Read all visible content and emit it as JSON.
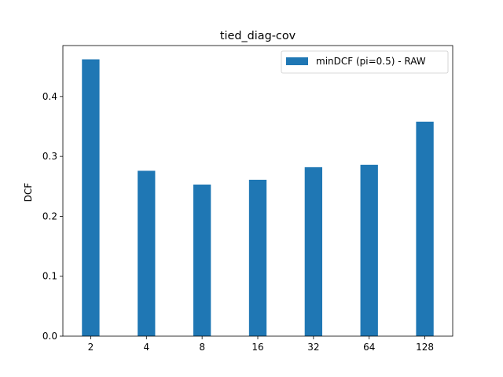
{
  "chart_data": {
    "type": "bar",
    "title": "tied_diag-cov",
    "xlabel": "",
    "ylabel": "DCF",
    "categories": [
      "2",
      "4",
      "8",
      "16",
      "32",
      "64",
      "128"
    ],
    "series": [
      {
        "name": "minDCF (pi=0.5) - RAW",
        "values": [
          0.462,
          0.276,
          0.253,
          0.261,
          0.282,
          0.286,
          0.358
        ]
      }
    ],
    "ylim": [
      0,
      0.485
    ],
    "yticks": [
      0.0,
      0.1,
      0.2,
      0.3,
      0.4
    ],
    "ytick_labels": [
      "0.0",
      "0.1",
      "0.2",
      "0.3",
      "0.4"
    ],
    "grid": false,
    "legend_position": "top-right",
    "bar_color": "#1f77b4"
  }
}
